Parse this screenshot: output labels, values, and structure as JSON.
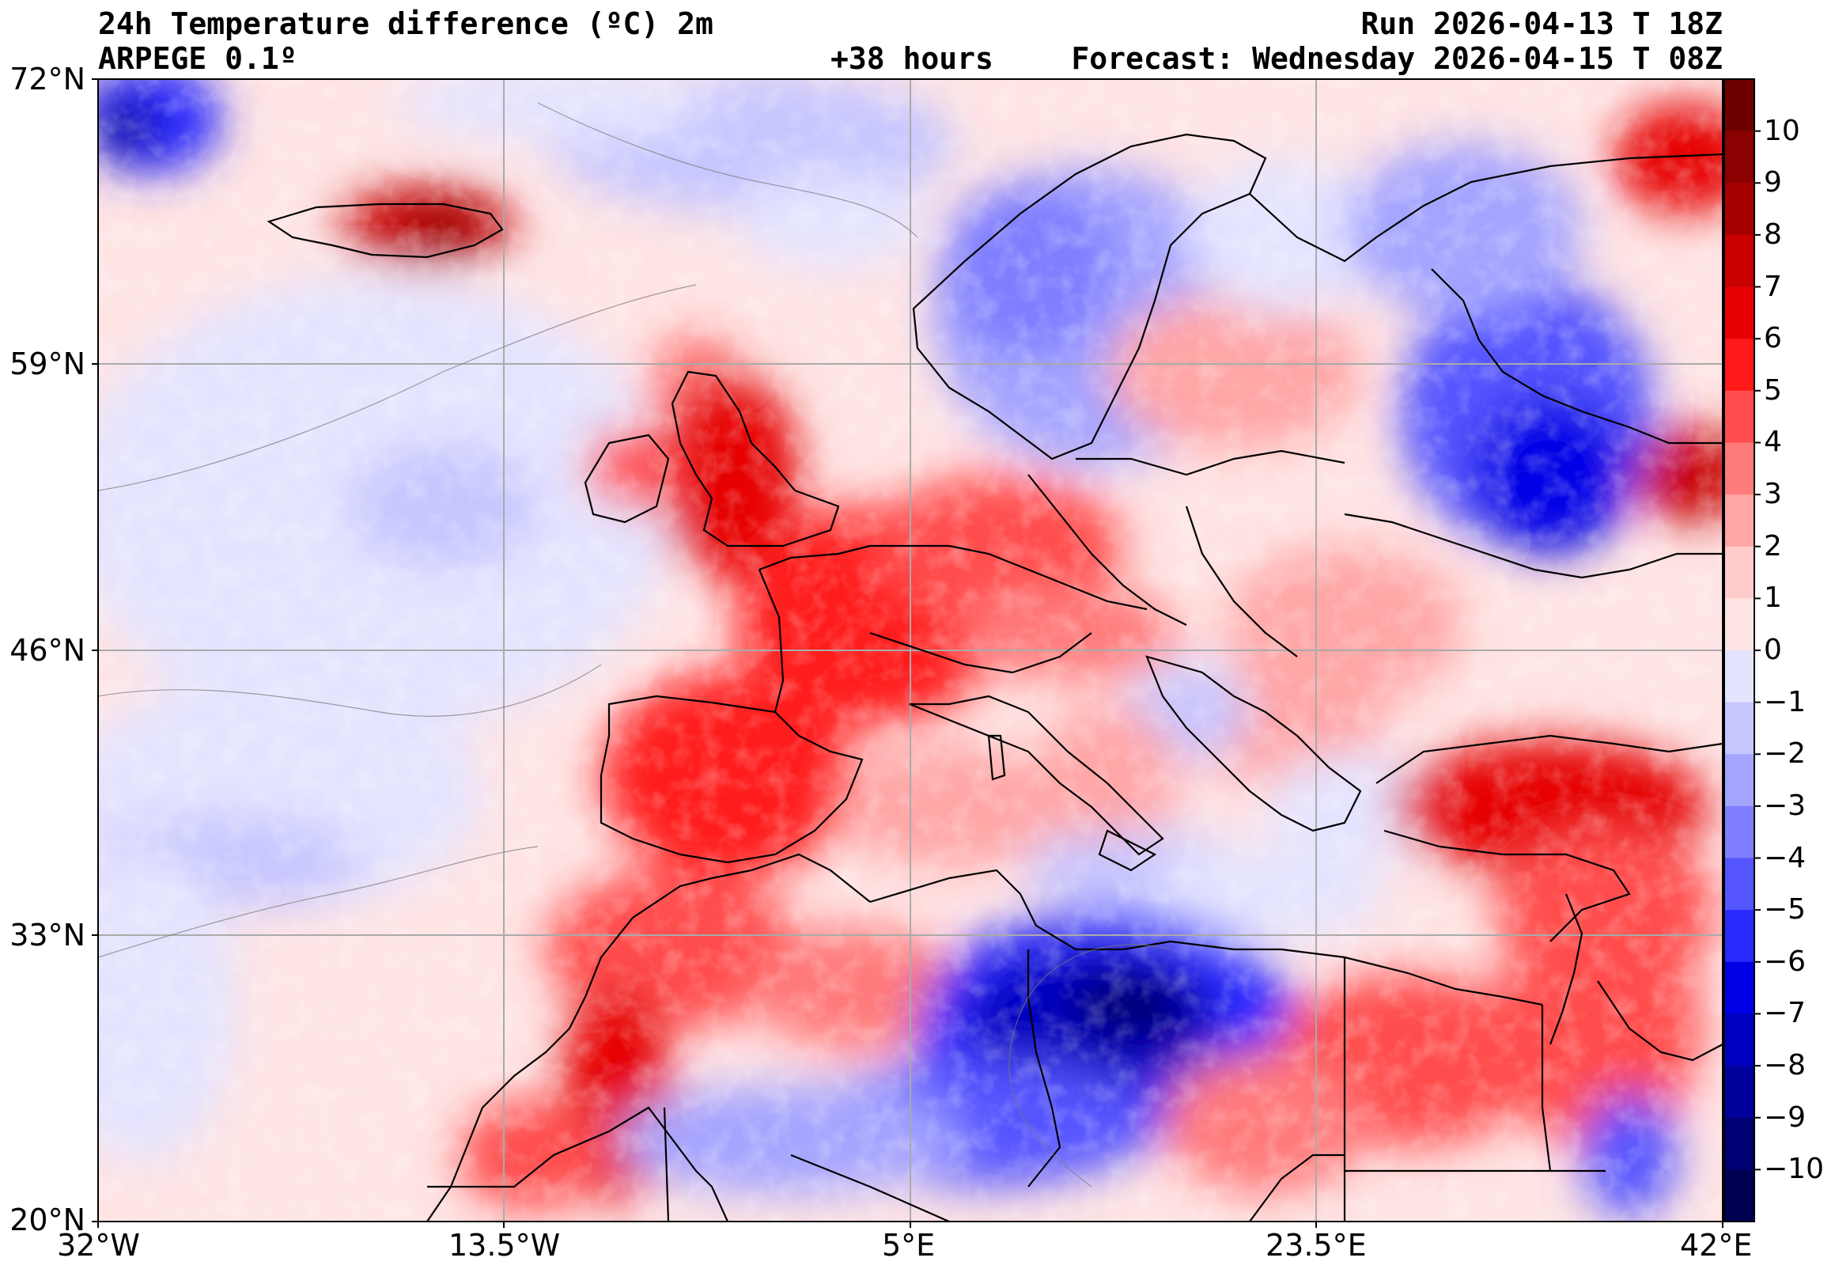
{
  "header": {
    "title": "24h Temperature difference (ºC) 2m",
    "model": "ARPEGE 0.1º",
    "lead": "+38 hours",
    "run": "Run 2026-04-13 T 18Z",
    "forecast": "Forecast: Wednesday 2026-04-15 T 08Z"
  },
  "axes": {
    "lat_labels": [
      "72°N",
      "59°N",
      "46°N",
      "33°N",
      "20°N"
    ],
    "lon_labels": [
      "32°W",
      "13.5°W",
      "5°E",
      "23.5°E",
      "42°E"
    ]
  },
  "colorbar": {
    "labels": [
      "10",
      "9",
      "8",
      "7",
      "6",
      "5",
      "4",
      "3",
      "2",
      "1",
      "0",
      "−1",
      "−2",
      "−3",
      "−4",
      "−5",
      "−6",
      "−7",
      "−8",
      "−9",
      "−10"
    ],
    "colors": {
      "warm": [
        "#6e0000",
        "#8b0000",
        "#a80000",
        "#c80000",
        "#e60000",
        "#ff1a1a",
        "#ff4d4d",
        "#ff7a7a",
        "#ffa6a6",
        "#ffcccc",
        "#ffe4e4"
      ],
      "cool": [
        "#e4e4ff",
        "#c6c6ff",
        "#a4a4ff",
        "#7e7eff",
        "#5555ff",
        "#2a2aff",
        "#0000e6",
        "#0000c0",
        "#00009a",
        "#000075",
        "#000052"
      ]
    }
  }
}
